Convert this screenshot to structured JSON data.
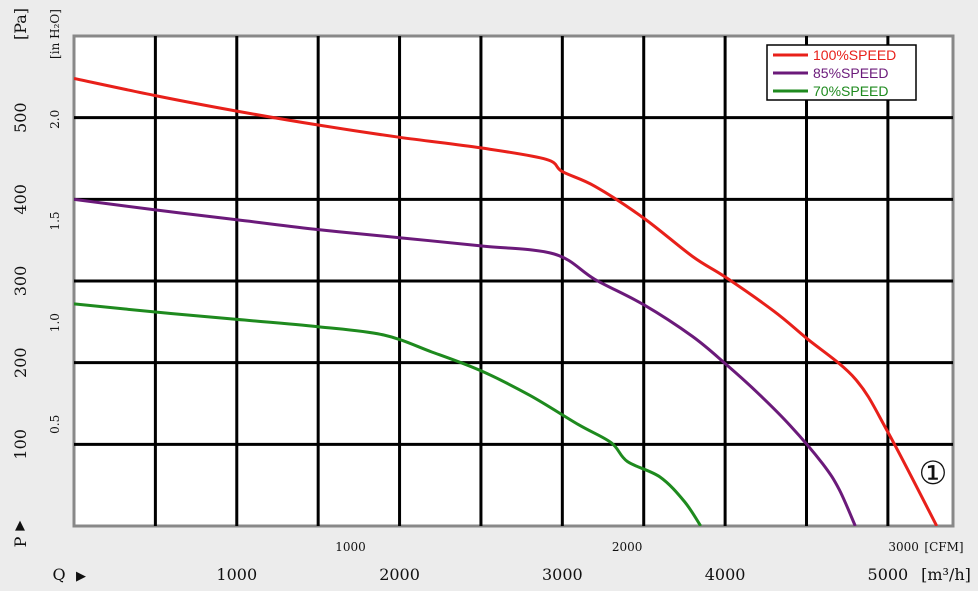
{
  "chart_data": {
    "type": "line",
    "x_primary": {
      "unit_label": "[m³/h]",
      "axis_prefix": "Q",
      "arrow": "▶",
      "range": [
        0,
        5400
      ],
      "ticks": [
        {
          "v": 1000,
          "label": "1000"
        },
        {
          "v": 2000,
          "label": "2000"
        },
        {
          "v": 3000,
          "label": "3000"
        },
        {
          "v": 4000,
          "label": "4000"
        },
        {
          "v": 5000,
          "label": "5000"
        }
      ]
    },
    "x_secondary": {
      "unit_label": "[CFM]",
      "ticks": [
        {
          "label": "1000",
          "m3h": 1699
        },
        {
          "label": "2000",
          "m3h": 3398
        },
        {
          "label": "3000",
          "m3h": 5097
        }
      ]
    },
    "y_primary": {
      "unit_label": "[Pa]",
      "axis_prefix": "P",
      "arrow": "▲",
      "range": [
        0,
        600
      ],
      "ticks": [
        {
          "v": 100,
          "label": "100"
        },
        {
          "v": 200,
          "label": "200"
        },
        {
          "v": 300,
          "label": "300"
        },
        {
          "v": 400,
          "label": "400"
        },
        {
          "v": 500,
          "label": "500"
        }
      ]
    },
    "y_secondary": {
      "unit_label": "[in H₂O]",
      "ticks": [
        {
          "label": "0.5",
          "pa": 124.5
        },
        {
          "label": "1.0",
          "pa": 249
        },
        {
          "label": "1.5",
          "pa": 373.5
        },
        {
          "label": "2.0",
          "pa": 498
        }
      ]
    },
    "grid": true,
    "grid_x": [
      500,
      1000,
      1500,
      2000,
      2500,
      3000,
      3500,
      4000,
      4500,
      5000
    ],
    "grid_y": [
      100,
      200,
      300,
      400,
      500
    ],
    "legend_position": "top-right",
    "series": [
      {
        "name": "100%SPEED",
        "color": "#e8201a",
        "points": [
          [
            0,
            548
          ],
          [
            500,
            527
          ],
          [
            1000,
            508
          ],
          [
            1500,
            491
          ],
          [
            2000,
            476
          ],
          [
            2500,
            463
          ],
          [
            2900,
            449
          ],
          [
            3000,
            434
          ],
          [
            3200,
            416
          ],
          [
            3500,
            377
          ],
          [
            3800,
            330
          ],
          [
            4000,
            305
          ],
          [
            4300,
            263
          ],
          [
            4500,
            230
          ],
          [
            4800,
            180
          ],
          [
            5000,
            115
          ],
          [
            5300,
            0
          ]
        ]
      },
      {
        "name": "85%SPEED",
        "color": "#6b1a7a",
        "points": [
          [
            0,
            400
          ],
          [
            500,
            387
          ],
          [
            1000,
            375
          ],
          [
            1500,
            363
          ],
          [
            2000,
            353
          ],
          [
            2500,
            343
          ],
          [
            2950,
            333
          ],
          [
            3200,
            302
          ],
          [
            3500,
            271
          ],
          [
            3800,
            232
          ],
          [
            4000,
            199
          ],
          [
            4200,
            163
          ],
          [
            4400,
            123
          ],
          [
            4600,
            76
          ],
          [
            4700,
            45
          ],
          [
            4800,
            0
          ]
        ]
      },
      {
        "name": "70%SPEED",
        "color": "#1e8a1e",
        "points": [
          [
            0,
            272
          ],
          [
            500,
            262
          ],
          [
            1000,
            253
          ],
          [
            1500,
            244
          ],
          [
            1900,
            234
          ],
          [
            2200,
            213
          ],
          [
            2500,
            190
          ],
          [
            2800,
            160
          ],
          [
            3100,
            124
          ],
          [
            3300,
            102
          ],
          [
            3400,
            79
          ],
          [
            3600,
            60
          ],
          [
            3750,
            30
          ],
          [
            3850,
            0
          ]
        ]
      }
    ],
    "annotation": "①"
  }
}
